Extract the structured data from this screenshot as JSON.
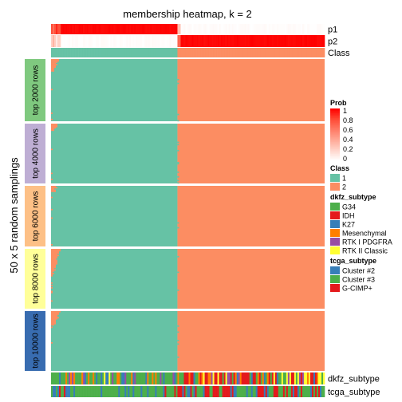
{
  "chart_data": {
    "type": "heatmap",
    "title": "membership heatmap, k = 2",
    "y_axis_label": "50 x 5 random samplings",
    "n_samples": 171,
    "class_split": 0.46,
    "annotation_rows": {
      "top": [
        "p1",
        "p2",
        "Class"
      ],
      "bottom": [
        "dkfz_subtype",
        "tcga_subtype"
      ]
    },
    "row_groups": [
      {
        "label": "top 2000 rows",
        "color": "#7fc97f",
        "mix": [
          4,
          10,
          3
        ]
      },
      {
        "label": "top 4000 rows",
        "color": "#beaed4",
        "mix": [
          4,
          6,
          3
        ]
      },
      {
        "label": "top 6000 rows",
        "color": "#fdc086",
        "mix": [
          3,
          5,
          2
        ]
      },
      {
        "label": "top 8000 rows",
        "color": "#ffff99",
        "mix": [
          5,
          22,
          10
        ]
      },
      {
        "label": "top 10000 rows",
        "color": "#386cb0",
        "mix": [
          5,
          12,
          4
        ]
      }
    ],
    "class_colors": {
      "1": "#66c2a5",
      "2": "#fc8d62"
    },
    "prob_scale": {
      "stops": [
        {
          "value": "1",
          "color": "#ff0000"
        },
        {
          "value": "0.8",
          "color": "#ff4a35"
        },
        {
          "value": "0.6",
          "color": "#ff7b66"
        },
        {
          "value": "0.4",
          "color": "#ffa896"
        },
        {
          "value": "0.2",
          "color": "#ffd4c9"
        },
        {
          "value": "0",
          "color": "#ffffff"
        }
      ]
    },
    "legends": [
      {
        "title": "Prob",
        "kind": "gradient",
        "labels": [
          "1",
          "0.8",
          "0.6",
          "0.4",
          "0.2",
          "0"
        ]
      },
      {
        "title": "Class",
        "kind": "discrete",
        "items": [
          {
            "label": "1",
            "color": "#66c2a5"
          },
          {
            "label": "2",
            "color": "#fc8d62"
          }
        ]
      },
      {
        "title": "dkfz_subtype",
        "kind": "discrete",
        "items": [
          {
            "label": "G34",
            "color": "#4daf4a"
          },
          {
            "label": "IDH",
            "color": "#e41a1c"
          },
          {
            "label": "K27",
            "color": "#377eb8"
          },
          {
            "label": "Mesenchymal",
            "color": "#ff7f00"
          },
          {
            "label": "RTK I PDGFRA",
            "color": "#984ea3"
          },
          {
            "label": "RTK II Classic",
            "color": "#ffff33"
          }
        ]
      },
      {
        "title": "tcga_subtype",
        "kind": "discrete",
        "items": [
          {
            "label": "Cluster #2",
            "color": "#377eb8"
          },
          {
            "label": "Cluster #3",
            "color": "#4daf4a"
          },
          {
            "label": "G-CIMP+",
            "color": "#e41a1c"
          }
        ]
      }
    ]
  }
}
